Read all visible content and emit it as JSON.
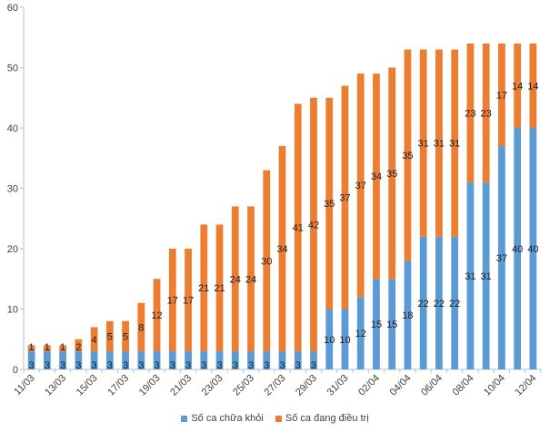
{
  "chart_data": {
    "type": "bar",
    "stacked": true,
    "categories": [
      "11/03",
      "12/03",
      "13/03",
      "14/03",
      "15/03",
      "16/03",
      "17/03",
      "18/03",
      "19/03",
      "20/03",
      "21/03",
      "22/03",
      "23/03",
      "24/03",
      "25/03",
      "26/03",
      "27/03",
      "28/03",
      "29/03",
      "30/03",
      "31/03",
      "01/04",
      "02/04",
      "03/04",
      "04/04",
      "05/04",
      "06/04",
      "07/04",
      "08/04",
      "09/04",
      "10/04",
      "11/04",
      "12/04"
    ],
    "xtick_labels": [
      "11/03",
      "13/03",
      "15/03",
      "17/03",
      "19/03",
      "21/03",
      "23/03",
      "25/03",
      "27/03",
      "29/03",
      "31/03",
      "02/04",
      "04/04",
      "06/04",
      "08/04",
      "10/04",
      "12/04"
    ],
    "series": [
      {
        "name": "Số ca chữa khỏi",
        "color": "#5b9bd5",
        "values": [
          3,
          3,
          3,
          3,
          3,
          3,
          3,
          3,
          3,
          3,
          3,
          3,
          3,
          3,
          3,
          3,
          3,
          3,
          3,
          10,
          10,
          12,
          15,
          15,
          18,
          22,
          22,
          22,
          31,
          31,
          37,
          40,
          40
        ]
      },
      {
        "name": "Số ca đang điều trị",
        "color": "#ed7d31",
        "values": [
          1,
          1,
          1,
          2,
          4,
          5,
          5,
          8,
          12,
          17,
          17,
          21,
          21,
          24,
          24,
          30,
          34,
          41,
          42,
          35,
          37,
          37,
          34,
          35,
          35,
          31,
          31,
          31,
          23,
          23,
          17,
          14,
          14
        ]
      }
    ],
    "ylim": [
      0,
      60
    ],
    "yticks": [
      0,
      10,
      20,
      30,
      40,
      50,
      60
    ],
    "grid": false,
    "legend_position": "bottom"
  }
}
